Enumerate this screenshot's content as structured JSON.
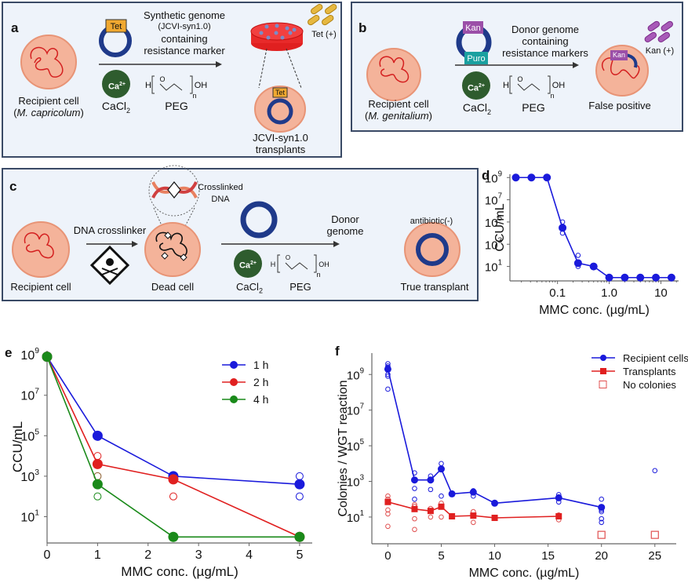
{
  "panel_a": {
    "label": "a",
    "recipient": "Recipient cell",
    "recipient_species": "M. capricolum",
    "marker": "Tet",
    "genome_text": [
      "Synthetic genome",
      "(JCVI-syn1.0)",
      "containing",
      "resistance marker"
    ],
    "ion": "Ca",
    "ion_charge": "2+",
    "cacl2": "CaCl",
    "cacl2_sub": "2",
    "peg": "PEG",
    "peg_h": "H",
    "peg_o": "O",
    "peg_oh": "OH",
    "peg_n": "n",
    "antibiotic": "Tet (+)",
    "result": [
      "JCVI-syn1.0",
      "transplants"
    ],
    "colors": {
      "antibiotic": "#d4a02a",
      "marker": "#f0a830"
    }
  },
  "panel_b": {
    "label": "b",
    "recipient": "Recipient cell",
    "recipient_species": "M. genitalium",
    "marker1": "Kan",
    "marker2": "Puro",
    "genome_text": [
      "Donor genome",
      "containing",
      "resistance markers"
    ],
    "ion": "Ca",
    "ion_charge": "2+",
    "cacl2": "CaCl",
    "cacl2_sub": "2",
    "peg": "PEG",
    "peg_h": "H",
    "peg_o": "O",
    "peg_oh": "OH",
    "peg_n": "n",
    "antibiotic": "Kan (+)",
    "result": "False positive",
    "colors": {
      "antibiotic": "#9b4fa8",
      "marker1": "#9b4fa8",
      "marker2": "#1aa0a0"
    }
  },
  "panel_c": {
    "label": "c",
    "recipient": "Recipient cell",
    "step1": "DNA crosslinker",
    "crosslinked": [
      "Crosslinked",
      "DNA"
    ],
    "dead": "Dead cell",
    "donor": [
      "Donor",
      "genome"
    ],
    "ion": "Ca",
    "ion_charge": "2+",
    "cacl2": "CaCl",
    "cacl2_sub": "2",
    "peg": "PEG",
    "peg_h": "H",
    "peg_o": "O",
    "peg_oh": "OH",
    "peg_n": "n",
    "antibiotic": "antibiotic(-)",
    "result": "True transplant"
  },
  "chart_data": [
    {
      "id": "d",
      "label": "d",
      "type": "line",
      "xscale": "log",
      "yscale": "log",
      "xlabel": "MMC conc. (µg/mL)",
      "ylabel": "CCU/mL",
      "xticks": [
        "0.1",
        "1.0",
        "10"
      ],
      "xtick_values": [
        0.1,
        1,
        10
      ],
      "yticks": [
        "10",
        "10",
        "10",
        "10",
        "10"
      ],
      "ytick_exp": [
        "9",
        "7",
        "5",
        "3",
        "1"
      ],
      "ytick_values": [
        1000000000.0,
        10000000.0,
        100000.0,
        1000.0,
        10.0
      ],
      "xlim": [
        0.012,
        22
      ],
      "ylim_log10": [
        -0.3,
        9.3
      ],
      "color": "#1a1adb",
      "series": [
        {
          "name": "mean",
          "x": [
            0.0156,
            0.03125,
            0.0625,
            0.125,
            0.25,
            0.5,
            1,
            2,
            4,
            8,
            16
          ],
          "y": [
            1000000000.0,
            1000000000.0,
            1000000000.0,
            30000.0,
            20,
            10,
            1,
            1,
            1,
            1,
            1
          ]
        }
      ],
      "replicates": {
        "x": [
          0.125,
          0.125,
          0.25,
          0.25
        ],
        "y": [
          100000.0,
          10000.0,
          100,
          10
        ]
      }
    },
    {
      "id": "e",
      "label": "e",
      "type": "line",
      "yscale": "log",
      "xlabel": "MMC conc. (µg/mL)",
      "ylabel": "CCU/mL",
      "xticks": [
        "0",
        "1",
        "2",
        "3",
        "4",
        "5"
      ],
      "xtick_values": [
        0,
        1,
        2,
        3,
        4,
        5
      ],
      "yticks": [
        "10",
        "10",
        "10",
        "10",
        "10"
      ],
      "ytick_exp": [
        "9",
        "7",
        "5",
        "3",
        "1"
      ],
      "ytick_values": [
        1000000000.0,
        10000000.0,
        100000.0,
        1000.0,
        10.0
      ],
      "xlim": [
        0,
        5.25
      ],
      "ylim_log10": [
        -0.3,
        9.2
      ],
      "legend_position": "top-right",
      "series": [
        {
          "name": "1 h",
          "color": "#1a1adb",
          "x": [
            0,
            1,
            2.5,
            5
          ],
          "y": [
            800000000.0,
            100000.0,
            1000,
            400
          ]
        },
        {
          "name": "2 h",
          "color": "#e02020",
          "x": [
            0,
            1,
            2.5,
            5
          ],
          "y": [
            800000000.0,
            4000,
            700,
            1
          ]
        },
        {
          "name": "4 h",
          "color": "#1a8a1a",
          "x": [
            0,
            1,
            2.5,
            5
          ],
          "y": [
            800000000.0,
            400,
            1,
            1
          ]
        }
      ],
      "replicates": [
        {
          "color": "#e02020",
          "x": [
            1,
            2.5
          ],
          "y": [
            10000,
            100
          ]
        },
        {
          "color": "#8a5a2a",
          "x": [
            1
          ],
          "y": [
            1000
          ]
        },
        {
          "color": "#1a8a1a",
          "x": [
            1
          ],
          "y": [
            100
          ]
        },
        {
          "color": "#1a1adb",
          "x": [
            5,
            5
          ],
          "y": [
            1000,
            100
          ]
        }
      ]
    },
    {
      "id": "f",
      "label": "f",
      "type": "line",
      "yscale": "log",
      "xlabel": "MMC conc. (µg/mL)",
      "ylabel": "Colonies / WGT reaction",
      "xticks": [
        "0",
        "5",
        "10",
        "15",
        "20",
        "25"
      ],
      "xtick_values": [
        0,
        5,
        10,
        15,
        20,
        25
      ],
      "yticks": [
        "10",
        "10",
        "10",
        "10",
        "10"
      ],
      "ytick_exp": [
        "9",
        "7",
        "5",
        "3",
        "1"
      ],
      "ytick_values": [
        1000000000.0,
        10000000.0,
        100000.0,
        1000.0,
        10.0
      ],
      "xlim": [
        -1.5,
        27
      ],
      "ylim_log10": [
        -0.5,
        10.2
      ],
      "legend_position": "top-right",
      "series": [
        {
          "name": "Recipient cells",
          "color": "#1a1adb",
          "marker": "circle",
          "x": [
            0,
            2.5,
            4,
            5,
            6,
            8,
            10,
            16,
            20
          ],
          "y": [
            2000000000.0,
            1200,
            1200,
            5000,
            200,
            250,
            60,
            120,
            35
          ]
        },
        {
          "name": "Transplants",
          "color": "#e02020",
          "marker": "square",
          "x": [
            0,
            2.5,
            4,
            5,
            6,
            8,
            10,
            16
          ],
          "y": [
            70,
            28,
            22,
            38,
            11,
            12,
            9,
            11
          ]
        },
        {
          "name": "No colonies",
          "color": "#e05050",
          "marker": "open-square",
          "x": [
            20,
            25
          ],
          "y": [
            1,
            1
          ]
        }
      ],
      "replicates": [
        {
          "color": "#1a1adb",
          "x": [
            0,
            0,
            0,
            0,
            0,
            0,
            2.5,
            2.5,
            2.5,
            4,
            4,
            5,
            5,
            8,
            8,
            16,
            16,
            20,
            20,
            20,
            20,
            20,
            25
          ],
          "y": [
            4000000000.0,
            3000000000.0,
            2500000000.0,
            1000000000.0,
            800000000.0,
            150000000.0,
            3000,
            400,
            100,
            2000,
            350,
            10000,
            150,
            300,
            150,
            180,
            70,
            100,
            25,
            20,
            8,
            5,
            4000
          ]
        },
        {
          "color": "#e05050",
          "x": [
            0,
            0,
            0,
            0,
            0,
            2.5,
            2.5,
            2.5,
            2.5,
            4,
            4,
            5,
            5,
            8,
            8,
            16,
            16
          ],
          "y": [
            150,
            100,
            25,
            15,
            3,
            50,
            40,
            8,
            2,
            30,
            10,
            60,
            10,
            20,
            5,
            13,
            7
          ]
        }
      ]
    }
  ]
}
